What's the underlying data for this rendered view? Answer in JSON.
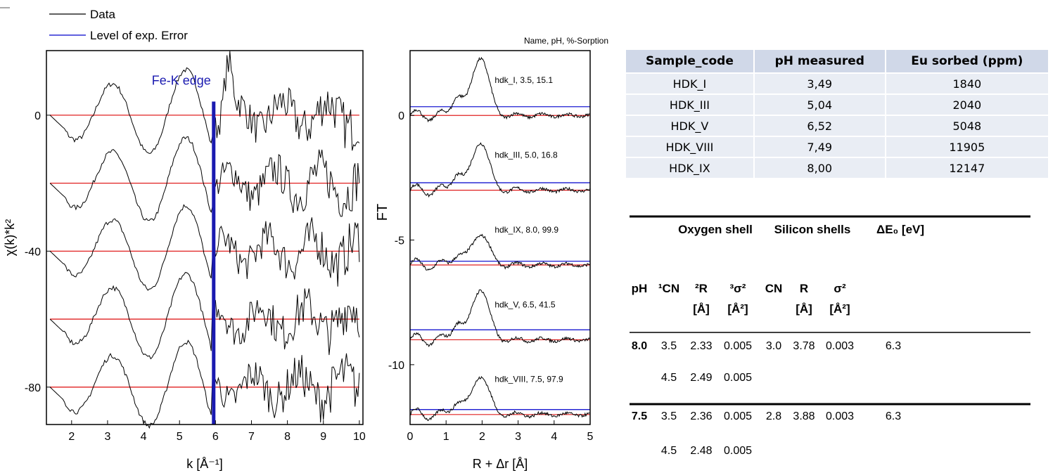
{
  "legend": {
    "items": [
      {
        "label": "Data",
        "color": "#000000"
      },
      {
        "label": "Level of exp. Error",
        "color": "#0000cc"
      }
    ]
  },
  "chart_data": [
    {
      "type": "line",
      "title": "",
      "xlabel": "k [Å⁻¹]",
      "ylabel": "χ(k)*k²",
      "xlim": [
        1.3,
        10.1
      ],
      "ylim": [
        -91,
        19
      ],
      "xticks": [
        "2",
        "3",
        "4",
        "5",
        "6",
        "7",
        "8",
        "9",
        "10"
      ],
      "yticks": [
        "0",
        "-40",
        "-80"
      ],
      "grid": false,
      "annotation": {
        "text": "Fe-K edge",
        "x": 5.95,
        "color": "#1a1ab0"
      },
      "reference_lines": [
        0,
        -20,
        -40,
        -60,
        -80
      ],
      "series": [
        {
          "offset": 0
        },
        {
          "offset": -20
        },
        {
          "offset": -40
        },
        {
          "offset": -60
        },
        {
          "offset": -80
        }
      ]
    },
    {
      "type": "line",
      "title": "Name, pH, %-Sorption",
      "xlabel": "R + Δr [Å]",
      "ylabel": "FT",
      "xlim": [
        0,
        5
      ],
      "ylim": [
        -12.4,
        2.6
      ],
      "xticks": [
        "0",
        "1",
        "2",
        "3",
        "4",
        "5"
      ],
      "yticks": [
        "0",
        "-5",
        "-10"
      ],
      "grid": false,
      "series": [
        {
          "name": "hdk_I, 3.5, 15.1",
          "baseline": 0,
          "error_level": 0.35,
          "peak": 2.4
        },
        {
          "name": "hdk_III, 5.0, 16.8",
          "baseline": -3.0,
          "error_level": -2.7,
          "peak": -1.0
        },
        {
          "name": "hdk_IX, 8.0, 99.9",
          "baseline": -6.0,
          "error_level": -5.85,
          "peak": -4.7
        },
        {
          "name": "hdk_V, 6.5, 41.5",
          "baseline": -9.0,
          "error_level": -8.6,
          "peak": -6.9
        },
        {
          "name": "hdk_VIII, 7.5, 97.9",
          "baseline": -12.0,
          "error_level": -11.8,
          "peak": -10.4
        }
      ]
    },
    {
      "type": "table",
      "columns": [
        "Sample_code",
        "pH measured",
        "Eu sorbed (ppm)"
      ],
      "rows": [
        [
          "HDK_I",
          "3,49",
          "1840"
        ],
        [
          "HDK_III",
          "5,04",
          "2040"
        ],
        [
          "HDK_V",
          "6,52",
          "5048"
        ],
        [
          "HDK_VIII",
          "7,49",
          "11905"
        ],
        [
          "HDK_IX",
          "8,00",
          "12147"
        ]
      ]
    },
    {
      "type": "table",
      "groups": [
        "Oxygen shell",
        "Silicon shells",
        "ΔE₀ [eV]"
      ],
      "columns": [
        "pH",
        "¹CN",
        "²R",
        "³σ²",
        "CN",
        "R",
        "σ²"
      ],
      "units": [
        "[Å]",
        "[Å²]",
        "[Å]",
        "[Å²]"
      ],
      "rows": [
        [
          "8.0",
          "3.5",
          "2.33",
          "0.005",
          "3.0",
          "3.78",
          "0.003",
          "6.3"
        ],
        [
          "",
          "4.5",
          "2.49",
          "0.005",
          "",
          "",
          "",
          ""
        ],
        [
          "7.5",
          "3.5",
          "2.36",
          "0.005",
          "2.8",
          "3.88",
          "0.003",
          "6.3"
        ],
        [
          "",
          "4.5",
          "2.48",
          "0.005",
          "",
          "",
          "",
          ""
        ]
      ]
    }
  ]
}
